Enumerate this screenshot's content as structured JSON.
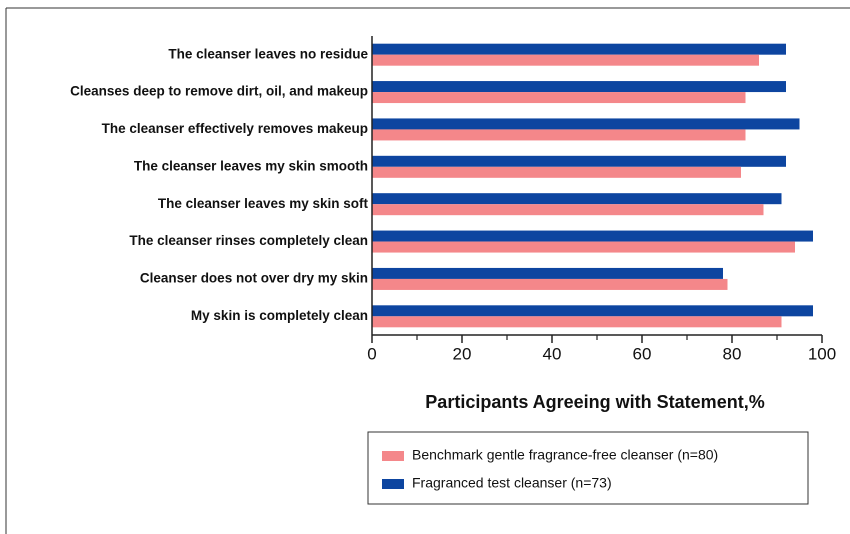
{
  "chart_data": {
    "type": "hbar",
    "categories": [
      "The cleanser leaves no residue",
      "Cleanses deep to remove dirt, oil, and makeup",
      "The cleanser effectively removes makeup",
      "The cleanser leaves my skin smooth",
      "The cleanser leaves my skin soft",
      "The cleanser rinses completely clean",
      "Cleanser does not over dry my skin",
      "My skin is completely clean"
    ],
    "series": [
      {
        "name": "Benchmark gentle fragrance-free cleanser (n=80)",
        "color": "#f4878a",
        "values": [
          86,
          83,
          83,
          82,
          87,
          94,
          79,
          91
        ]
      },
      {
        "name": "Fragranced test cleanser (n=73)",
        "color": "#0d45a0",
        "values": [
          92,
          92,
          95,
          92,
          91,
          98,
          78,
          98
        ]
      }
    ],
    "xlabel": "Participants Agreeing with Statement,%",
    "xlim": [
      0,
      100
    ],
    "xticks": [
      0,
      20,
      40,
      60,
      80,
      100
    ],
    "xminorticks": [
      10,
      30,
      50,
      70,
      90
    ],
    "legend": "bottom"
  }
}
